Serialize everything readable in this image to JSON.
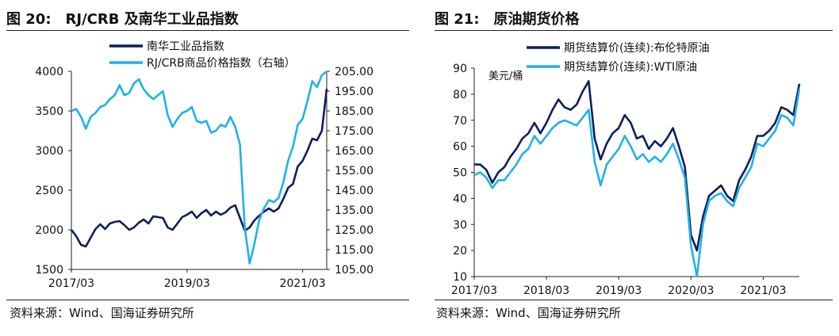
{
  "colors": {
    "navy": "#0d1f5c",
    "cyan": "#20b2e6",
    "axis": "#222222"
  },
  "charts": [
    {
      "title_num": "图 20:",
      "title_text": "RJ/CRB 及南华工业品指数",
      "source": "资料来源：Wind、国海证券研究所"
    },
    {
      "title_num": "图 21:",
      "title_text": "原油期货价格",
      "source": "资料来源：Wind、国海证券研究所"
    }
  ],
  "chart_data": [
    {
      "type": "line",
      "title": "RJ/CRB 及南华工业品指数",
      "x_ticks": [
        "2017/03",
        "2019/03",
        "2021/03"
      ],
      "x_range": [
        "2017-03",
        "2021-08"
      ],
      "y_left_ticks": [
        "4000",
        "3500",
        "3000",
        "2500",
        "2000",
        "1500"
      ],
      "y_left_range": [
        1500,
        4000
      ],
      "y_right_ticks": [
        "205.00",
        "195.00",
        "185.00",
        "175.00",
        "165.00",
        "155.00",
        "145.00",
        "135.00",
        "125.00",
        "115.00",
        "105.00"
      ],
      "y_right_range": [
        105,
        205
      ],
      "legend_position": "top",
      "series": [
        {
          "name": "南华工业品指数",
          "axis": "left",
          "color": "navy",
          "points": [
            [
              "2017-03",
              2000
            ],
            [
              "2017-04",
              1920
            ],
            [
              "2017-05",
              1810
            ],
            [
              "2017-06",
              1790
            ],
            [
              "2017-07",
              1900
            ],
            [
              "2017-08",
              2010
            ],
            [
              "2017-09",
              2070
            ],
            [
              "2017-10",
              2010
            ],
            [
              "2017-11",
              2080
            ],
            [
              "2017-12",
              2100
            ],
            [
              "2018-01",
              2110
            ],
            [
              "2018-02",
              2060
            ],
            [
              "2018-03",
              2000
            ],
            [
              "2018-04",
              2030
            ],
            [
              "2018-05",
              2090
            ],
            [
              "2018-06",
              2130
            ],
            [
              "2018-07",
              2080
            ],
            [
              "2018-08",
              2170
            ],
            [
              "2018-09",
              2160
            ],
            [
              "2018-10",
              2150
            ],
            [
              "2018-11",
              2030
            ],
            [
              "2018-12",
              2000
            ],
            [
              "2019-01",
              2080
            ],
            [
              "2019-02",
              2160
            ],
            [
              "2019-03",
              2190
            ],
            [
              "2019-04",
              2230
            ],
            [
              "2019-05",
              2150
            ],
            [
              "2019-06",
              2210
            ],
            [
              "2019-07",
              2250
            ],
            [
              "2019-08",
              2180
            ],
            [
              "2019-09",
              2230
            ],
            [
              "2019-10",
              2190
            ],
            [
              "2019-11",
              2220
            ],
            [
              "2019-12",
              2280
            ],
            [
              "2020-01",
              2310
            ],
            [
              "2020-02",
              2150
            ],
            [
              "2020-03",
              1990
            ],
            [
              "2020-04",
              2030
            ],
            [
              "2020-05",
              2120
            ],
            [
              "2020-06",
              2180
            ],
            [
              "2020-07",
              2230
            ],
            [
              "2020-08",
              2270
            ],
            [
              "2020-09",
              2230
            ],
            [
              "2020-10",
              2270
            ],
            [
              "2020-11",
              2390
            ],
            [
              "2020-12",
              2530
            ],
            [
              "2021-01",
              2580
            ],
            [
              "2021-02",
              2800
            ],
            [
              "2021-03",
              2870
            ],
            [
              "2021-04",
              3000
            ],
            [
              "2021-05",
              3150
            ],
            [
              "2021-06",
              3130
            ],
            [
              "2021-07",
              3250
            ],
            [
              "2021-08",
              3780
            ]
          ]
        },
        {
          "name": "RJ/CRB商品价格指数（右轴）",
          "axis": "right",
          "color": "cyan",
          "points": [
            [
              "2017-03",
              185
            ],
            [
              "2017-04",
              186
            ],
            [
              "2017-05",
              182
            ],
            [
              "2017-06",
              176
            ],
            [
              "2017-07",
              182
            ],
            [
              "2017-08",
              184
            ],
            [
              "2017-09",
              187
            ],
            [
              "2017-10",
              188
            ],
            [
              "2017-11",
              191
            ],
            [
              "2017-12",
              193
            ],
            [
              "2018-01",
              198
            ],
            [
              "2018-02",
              193
            ],
            [
              "2018-03",
              194
            ],
            [
              "2018-04",
              199
            ],
            [
              "2018-05",
              201
            ],
            [
              "2018-06",
              196
            ],
            [
              "2018-07",
              193
            ],
            [
              "2018-08",
              191
            ],
            [
              "2018-09",
              193
            ],
            [
              "2018-10",
              195
            ],
            [
              "2018-11",
              183
            ],
            [
              "2018-12",
              177
            ],
            [
              "2019-01",
              181
            ],
            [
              "2019-02",
              184
            ],
            [
              "2019-03",
              185
            ],
            [
              "2019-04",
              187
            ],
            [
              "2019-05",
              180
            ],
            [
              "2019-06",
              179
            ],
            [
              "2019-07",
              180
            ],
            [
              "2019-08",
              174
            ],
            [
              "2019-09",
              175
            ],
            [
              "2019-10",
              178
            ],
            [
              "2019-11",
              177
            ],
            [
              "2019-12",
              182
            ],
            [
              "2020-01",
              177
            ],
            [
              "2020-02",
              168
            ],
            [
              "2020-03",
              126
            ],
            [
              "2020-04",
              108
            ],
            [
              "2020-05",
              118
            ],
            [
              "2020-06",
              130
            ],
            [
              "2020-07",
              136
            ],
            [
              "2020-08",
              140
            ],
            [
              "2020-09",
              139
            ],
            [
              "2020-10",
              141
            ],
            [
              "2020-11",
              149
            ],
            [
              "2020-12",
              160
            ],
            [
              "2021-01",
              167
            ],
            [
              "2021-02",
              178
            ],
            [
              "2021-03",
              181
            ],
            [
              "2021-04",
              190
            ],
            [
              "2021-05",
              200
            ],
            [
              "2021-06",
              197
            ],
            [
              "2021-07",
              203
            ],
            [
              "2021-08",
              205
            ]
          ]
        }
      ]
    },
    {
      "type": "line",
      "title": "原油期货价格",
      "ylabel": "美元/桶",
      "x_ticks": [
        "2017/03",
        "2018/03",
        "2019/03",
        "2020/03",
        "2021/03"
      ],
      "x_range": [
        "2017-03",
        "2021-09"
      ],
      "y_ticks": [
        "90",
        "80",
        "70",
        "60",
        "50",
        "40",
        "30",
        "20",
        "10"
      ],
      "y_range": [
        10,
        90
      ],
      "legend_position": "top",
      "series": [
        {
          "name": "期货结算价(连续):布伦特原油",
          "color": "navy",
          "points": [
            [
              "2017-03",
              53
            ],
            [
              "2017-04",
              53
            ],
            [
              "2017-05",
              51
            ],
            [
              "2017-06",
              46
            ],
            [
              "2017-07",
              50
            ],
            [
              "2017-08",
              52
            ],
            [
              "2017-09",
              56
            ],
            [
              "2017-10",
              59
            ],
            [
              "2017-11",
              63
            ],
            [
              "2017-12",
              65
            ],
            [
              "2018-01",
              69
            ],
            [
              "2018-02",
              65
            ],
            [
              "2018-03",
              69
            ],
            [
              "2018-04",
              74
            ],
            [
              "2018-05",
              78
            ],
            [
              "2018-06",
              75
            ],
            [
              "2018-07",
              74
            ],
            [
              "2018-08",
              76
            ],
            [
              "2018-09",
              81
            ],
            [
              "2018-10",
              85
            ],
            [
              "2018-11",
              63
            ],
            [
              "2018-12",
              55
            ],
            [
              "2019-01",
              61
            ],
            [
              "2019-02",
              65
            ],
            [
              "2019-03",
              67
            ],
            [
              "2019-04",
              72
            ],
            [
              "2019-05",
              69
            ],
            [
              "2019-06",
              63
            ],
            [
              "2019-07",
              64
            ],
            [
              "2019-08",
              59
            ],
            [
              "2019-09",
              62
            ],
            [
              "2019-10",
              60
            ],
            [
              "2019-11",
              63
            ],
            [
              "2019-12",
              67
            ],
            [
              "2020-01",
              60
            ],
            [
              "2020-02",
              52
            ],
            [
              "2020-03",
              26
            ],
            [
              "2020-04",
              20
            ],
            [
              "2020-05",
              33
            ],
            [
              "2020-06",
              41
            ],
            [
              "2020-07",
              43
            ],
            [
              "2020-08",
              45
            ],
            [
              "2020-09",
              41
            ],
            [
              "2020-10",
              39
            ],
            [
              "2020-11",
              47
            ],
            [
              "2020-12",
              51
            ],
            [
              "2021-01",
              56
            ],
            [
              "2021-02",
              64
            ],
            [
              "2021-03",
              64
            ],
            [
              "2021-04",
              66
            ],
            [
              "2021-05",
              69
            ],
            [
              "2021-06",
              75
            ],
            [
              "2021-07",
              74
            ],
            [
              "2021-08",
              72
            ],
            [
              "2021-09",
              84
            ]
          ]
        },
        {
          "name": "期货结算价(连续):WTI原油",
          "color": "cyan",
          "points": [
            [
              "2017-03",
              49
            ],
            [
              "2017-04",
              50
            ],
            [
              "2017-05",
              48
            ],
            [
              "2017-06",
              44
            ],
            [
              "2017-07",
              47
            ],
            [
              "2017-08",
              47
            ],
            [
              "2017-09",
              50
            ],
            [
              "2017-10",
              53
            ],
            [
              "2017-11",
              57
            ],
            [
              "2017-12",
              59
            ],
            [
              "2018-01",
              64
            ],
            [
              "2018-02",
              61
            ],
            [
              "2018-03",
              64
            ],
            [
              "2018-04",
              67
            ],
            [
              "2018-05",
              69
            ],
            [
              "2018-06",
              70
            ],
            [
              "2018-07",
              69
            ],
            [
              "2018-08",
              68
            ],
            [
              "2018-09",
              71
            ],
            [
              "2018-10",
              74
            ],
            [
              "2018-11",
              54
            ],
            [
              "2018-12",
              45
            ],
            [
              "2019-01",
              53
            ],
            [
              "2019-02",
              56
            ],
            [
              "2019-03",
              59
            ],
            [
              "2019-04",
              64
            ],
            [
              "2019-05",
              60
            ],
            [
              "2019-06",
              55
            ],
            [
              "2019-07",
              57
            ],
            [
              "2019-08",
              54
            ],
            [
              "2019-09",
              56
            ],
            [
              "2019-10",
              54
            ],
            [
              "2019-11",
              57
            ],
            [
              "2019-12",
              61
            ],
            [
              "2020-01",
              55
            ],
            [
              "2020-02",
              48
            ],
            [
              "2020-03",
              22
            ],
            [
              "2020-04",
              10
            ],
            [
              "2020-05",
              30
            ],
            [
              "2020-06",
              39
            ],
            [
              "2020-07",
              41
            ],
            [
              "2020-08",
              42
            ],
            [
              "2020-09",
              39
            ],
            [
              "2020-10",
              37
            ],
            [
              "2020-11",
              44
            ],
            [
              "2020-12",
              48
            ],
            [
              "2021-01",
              52
            ],
            [
              "2021-02",
              61
            ],
            [
              "2021-03",
              60
            ],
            [
              "2021-04",
              63
            ],
            [
              "2021-05",
              66
            ],
            [
              "2021-06",
              72
            ],
            [
              "2021-07",
              71
            ],
            [
              "2021-08",
              68
            ],
            [
              "2021-09",
              82
            ]
          ]
        }
      ]
    }
  ]
}
